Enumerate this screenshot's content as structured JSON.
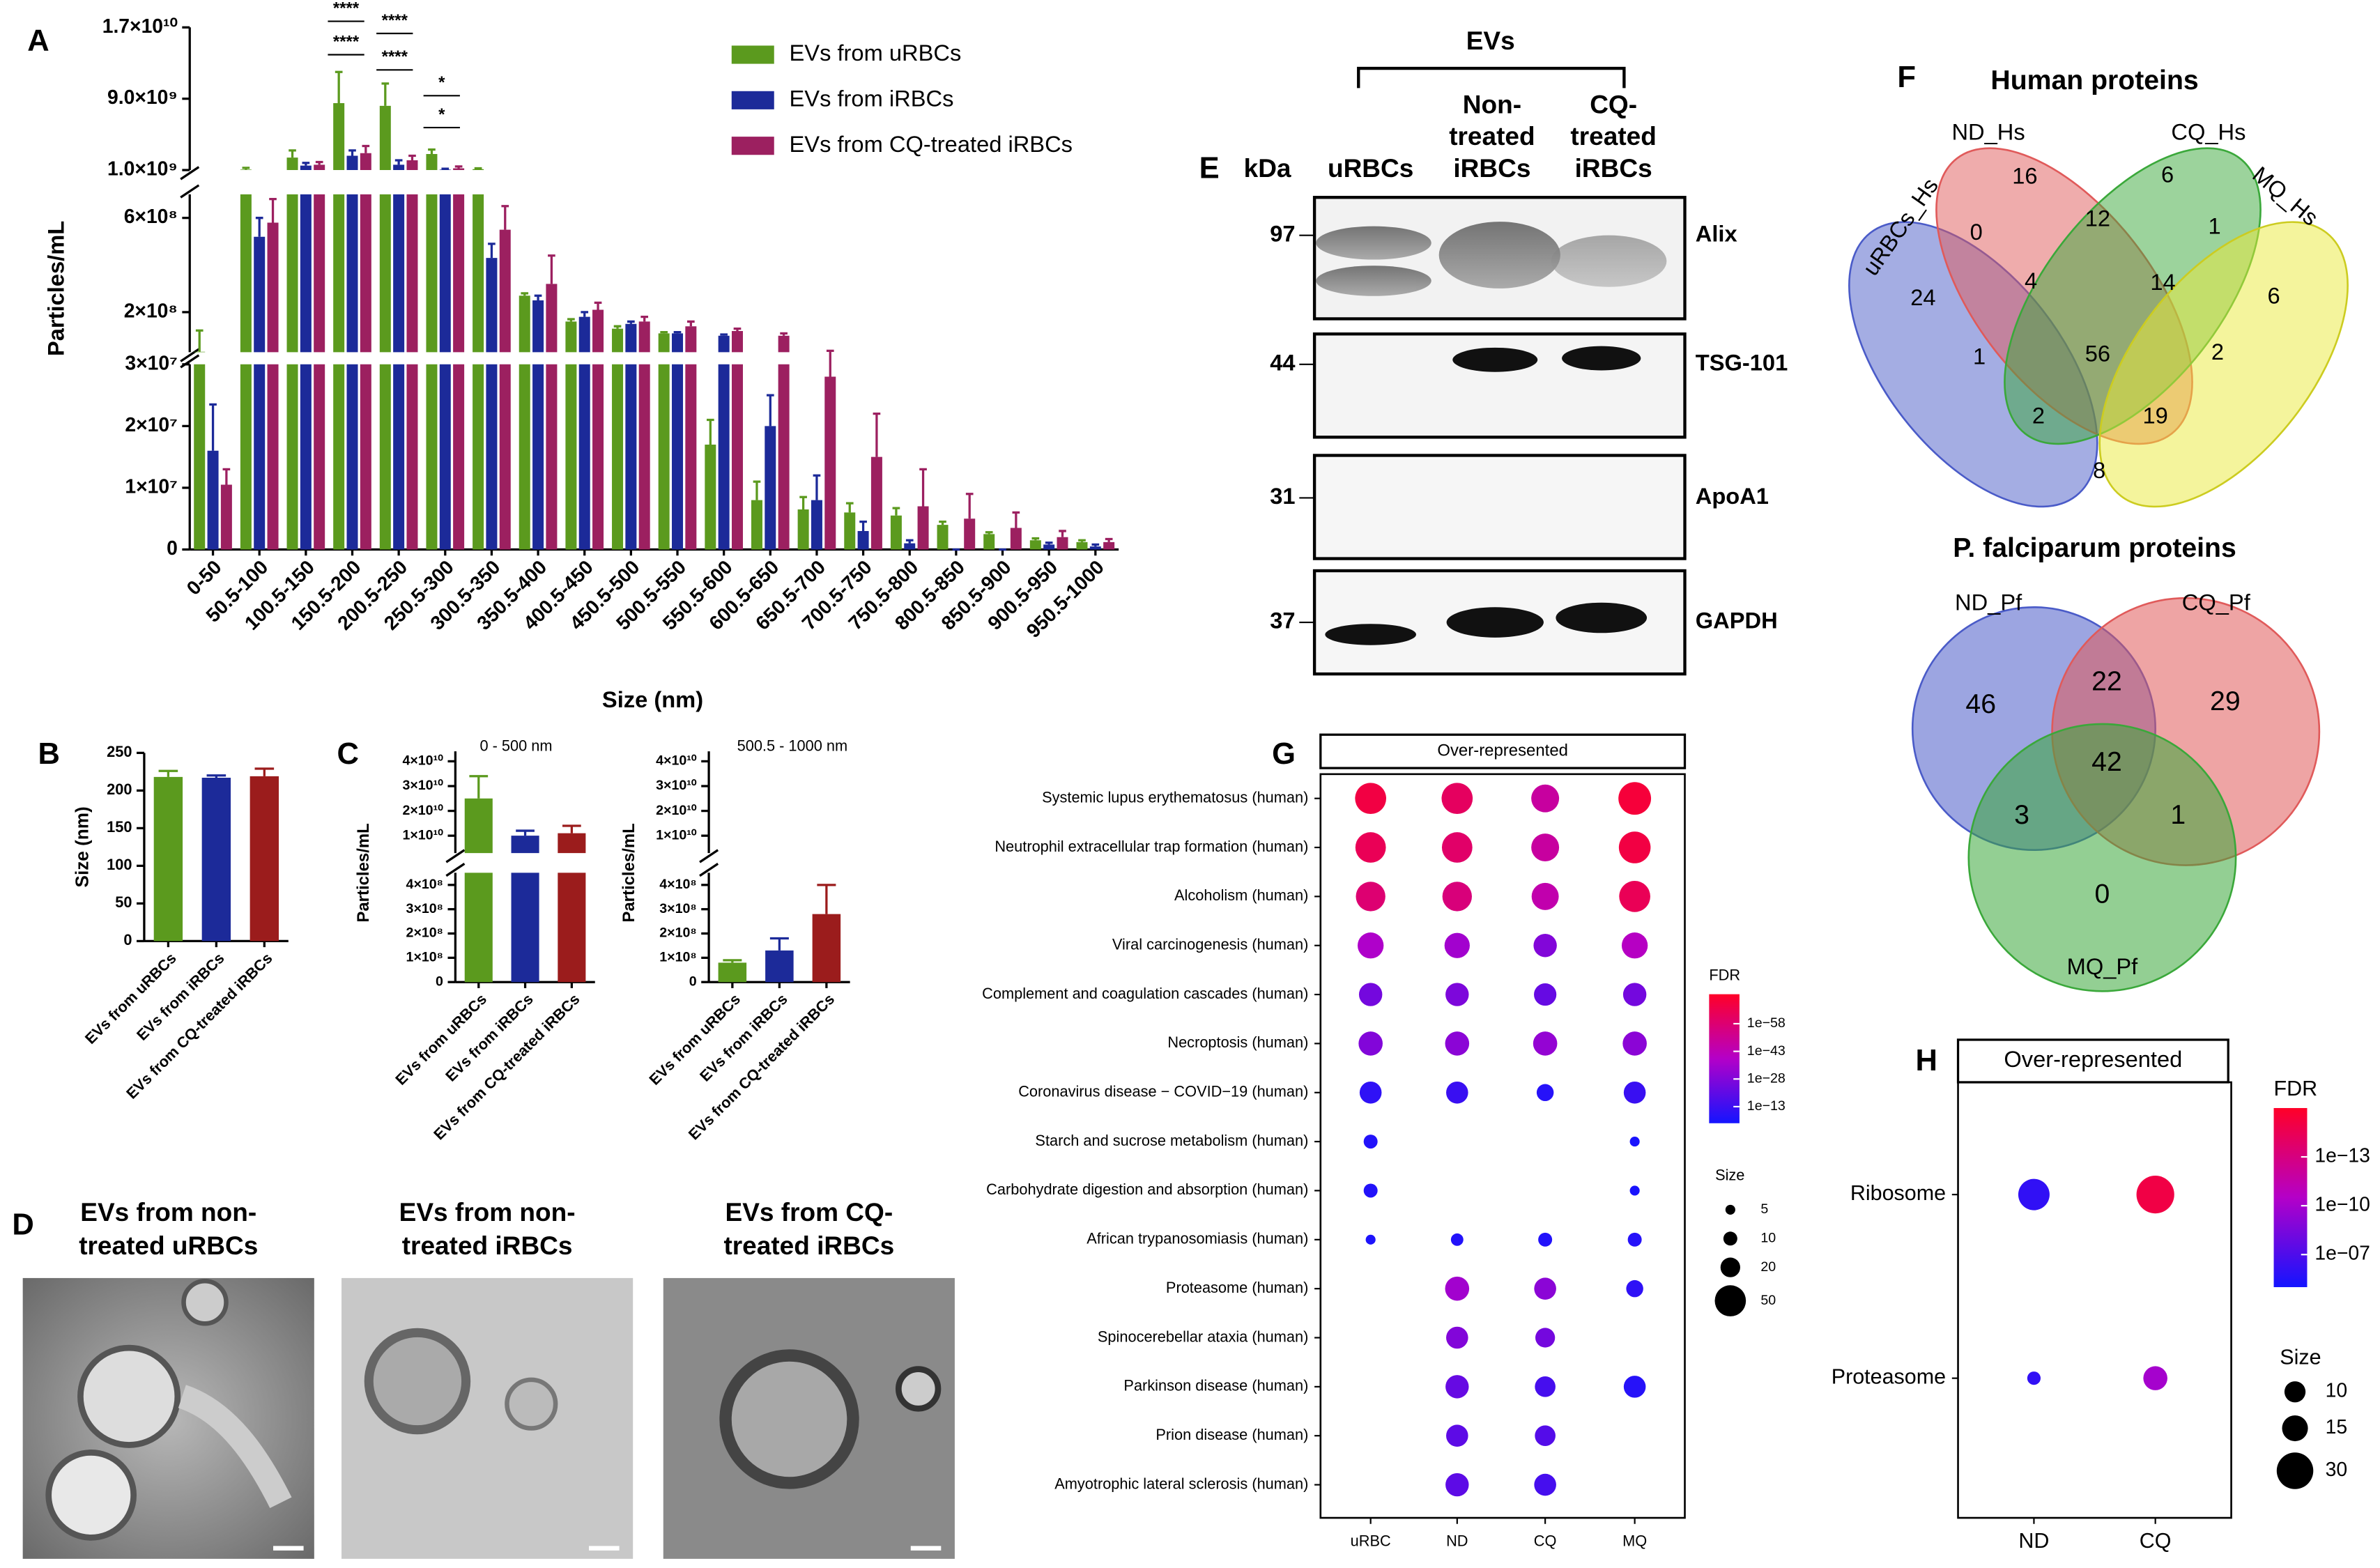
{
  "chart_data": [
    {
      "type": "bar",
      "ylabel": "Particles/mL",
      "xlabel": "Size (nm)",
      "legend": "top-right",
      "categories": [
        "0-50",
        "50.5-100",
        "100.5-150",
        "150.5-200",
        "200.5-250",
        "250.5-300",
        "300.5-350",
        "350.5-400",
        "400.5-450",
        "450.5-500",
        "500.5-550",
        "550.5-600",
        "600.5-650",
        "650.5-700",
        "700.5-750",
        "750.5-800",
        "800.5-850",
        "850.5-900",
        "900.5-950",
        "950.5-1000"
      ],
      "series": [
        {
          "name": "EVs from uRBCs",
          "color": "#5b9a1e",
          "values": [
            32000000.0,
            1050000000.0,
            2400000000.0,
            8500000000.0,
            8200000000.0,
            2800000000.0,
            1100000000.0,
            270000000.0,
            160000000.0,
            130000000.0,
            110000000.0,
            17000000.0,
            8000000.0,
            6500000.0,
            6000000.0,
            5500000.0,
            4000000.0,
            2500000.0,
            1500000.0,
            1200000.0
          ],
          "errors": [
            90000000.0,
            200000000.0,
            800000000.0,
            3500000000.0,
            2500000000.0,
            500000000.0,
            100000000.0,
            10000000.0,
            10000000.0,
            10000000.0,
            5000000.0,
            4000000.0,
            3000000.0,
            2000000.0,
            1500000.0,
            1200000.0,
            500000.0,
            300000.0,
            300000.0,
            300000.0
          ]
        },
        {
          "name": "EVs from iRBCs",
          "color": "#1c2a99",
          "values": [
            16000000.0,
            520000000.0,
            1500000000.0,
            2600000000.0,
            1600000000.0,
            1050000000.0,
            430000000.0,
            250000000.0,
            180000000.0,
            150000000.0,
            110000000.0,
            100000000.0,
            20000000.0,
            8000000.0,
            3000000.0,
            1000000.0,
            0,
            0,
            800000.0,
            500000.0
          ],
          "errors": [
            7500000.0,
            80000000.0,
            300000000.0,
            600000000.0,
            500000000.0,
            100000000.0,
            60000000.0,
            20000000.0,
            20000000.0,
            10000000.0,
            5000000.0,
            5000000.0,
            5000000.0,
            4000000.0,
            1500000.0,
            500000.0,
            0,
            0,
            300000.0,
            300000.0
          ]
        },
        {
          "name": "EVs from CQ-treated iRBCs",
          "color": "#9c2060",
          "values": [
            10500000.0,
            580000000.0,
            1600000000.0,
            2900000000.0,
            2100000000.0,
            1200000000.0,
            550000000.0,
            320000000.0,
            210000000.0,
            160000000.0,
            140000000.0,
            120000000.0,
            100000000.0,
            28000000.0,
            15000000.0,
            7000000.0,
            5000000.0,
            3500000.0,
            2000000.0,
            1200000.0
          ],
          "errors": [
            2500000.0,
            100000000.0,
            300000000.0,
            800000000.0,
            500000000.0,
            200000000.0,
            100000000.0,
            120000000.0,
            30000000.0,
            20000000.0,
            20000000.0,
            10000000.0,
            10000000.0,
            8000000.0,
            7000000.0,
            6000000.0,
            4000000.0,
            2500000.0,
            1000000.0,
            500000.0
          ]
        }
      ],
      "segments": [
        {
          "ylim": [
            0,
            30000000.0
          ],
          "yticks": [
            0,
            {
              "value": 10000000.0,
              "label": "1×10⁷"
            },
            {
              "value": 20000000.0,
              "label": "2×10⁷"
            },
            {
              "value": 30000000.0,
              "label": "3×10⁷"
            }
          ]
        },
        {
          "ylim": [
            30000000.0,
            700000000.0
          ],
          "yticks": [
            {
              "value": 200000000.0,
              "label": "2×10⁸"
            },
            {
              "value": 600000000.0,
              "label": "6×10⁸"
            }
          ]
        },
        {
          "ylim": [
            1000000000.0,
            17000000000.0
          ],
          "yticks": [
            {
              "value": 1000000000.0,
              "label": "1.0×10⁹"
            },
            {
              "value": 9000000000.0,
              "label": "9.0×10⁹"
            },
            {
              "value": 17000000000.0,
              "label": "1.7×10¹⁰"
            }
          ]
        }
      ],
      "annotations": [
        "****",
        "****",
        "****",
        "****",
        "*",
        "*"
      ]
    },
    {
      "type": "bar",
      "ylabel": "Size (nm)",
      "categories": [
        "EVs from uRBCs",
        "EVs from iRBCs",
        "EVs from CQ-treated iRBCs"
      ],
      "values": [
        218,
        217,
        219
      ],
      "errors": [
        8,
        3,
        10
      ],
      "colors": [
        "#5b9a1e",
        "#1c2a99",
        "#9b1c1c"
      ],
      "ylim": [
        0,
        250
      ],
      "yticks": [
        0,
        50,
        100,
        150,
        200,
        250
      ]
    },
    {
      "type": "bar",
      "title": "0 - 500 nm",
      "ylabel": "Particles/mL",
      "categories": [
        "EVs from uRBCs",
        "EVs from iRBCs",
        "EVs from CQ-treated iRBCs"
      ],
      "values": [
        25000000000.0,
        10000000000.0,
        11000000000.0
      ],
      "errors": [
        9000000000.0,
        2000000000.0,
        3000000000.0
      ],
      "colors": [
        "#5b9a1e",
        "#1c2a99",
        "#9b1c1c"
      ],
      "segments": [
        {
          "ylim": [
            0,
            450000000.0
          ],
          "yticks": [
            0,
            {
              "value": 100000000.0,
              "label": "1×10⁸"
            },
            {
              "value": 200000000.0,
              "label": "2×10⁸"
            },
            {
              "value": 300000000.0,
              "label": "3×10⁸"
            },
            {
              "value": 400000000.0,
              "label": "4×10⁸"
            }
          ]
        },
        {
          "ylim": [
            3000000000.0,
            44000000000.0
          ],
          "yticks": [
            {
              "value": 10000000000.0,
              "label": "1×10¹⁰"
            },
            {
              "value": 20000000000.0,
              "label": "2×10¹⁰"
            },
            {
              "value": 30000000000.0,
              "label": "3×10¹⁰"
            },
            {
              "value": 40000000000.0,
              "label": "4×10¹⁰"
            }
          ]
        }
      ]
    },
    {
      "type": "bar",
      "title": "500.5 - 1000 nm",
      "ylabel": "Particles/mL",
      "categories": [
        "EVs from uRBCs",
        "EVs from iRBCs",
        "EVs from CQ-treated iRBCs"
      ],
      "values": [
        80000000.0,
        130000000.0,
        280000000.0
      ],
      "errors": [
        10000000.0,
        50000000.0,
        120000000.0
      ],
      "colors": [
        "#5b9a1e",
        "#1c2a99",
        "#9b1c1c"
      ],
      "segments": [
        {
          "ylim": [
            0,
            450000000.0
          ],
          "yticks": [
            0,
            {
              "value": 100000000.0,
              "label": "1×10⁸"
            },
            {
              "value": 200000000.0,
              "label": "2×10⁸"
            },
            {
              "value": 300000000.0,
              "label": "3×10⁸"
            },
            {
              "value": 400000000.0,
              "label": "4×10⁸"
            }
          ]
        },
        {
          "ylim": [
            3000000000.0,
            44000000000.0
          ],
          "yticks": [
            {
              "value": 10000000000.0,
              "label": "1×10¹⁰"
            },
            {
              "value": 20000000000.0,
              "label": "2×10¹⁰"
            },
            {
              "value": 30000000000.0,
              "label": "3×10¹⁰"
            },
            {
              "value": 40000000000.0,
              "label": "4×10¹⁰"
            }
          ]
        }
      ]
    },
    {
      "type": "dot",
      "header": "Over-represented",
      "legend_fdr": "FDR",
      "legend_size": "Size",
      "rows": [
        "Systemic lupus erythematosus (human)",
        "Neutrophil extracellular trap formation (human)",
        "Alcoholism (human)",
        "Viral carcinogenesis (human)",
        "Complement and coagulation cascades (human)",
        "Necroptosis (human)",
        "Coronavirus disease − COVID−19 (human)",
        "Starch and sucrose metabolism (human)",
        "Carbohydrate digestion and absorption (human)",
        "African trypanosomiasis (human)",
        "Proteasome (human)",
        "Spinocerebellar ataxia (human)",
        "Parkinson disease (human)",
        "Prion disease (human)",
        "Amyotrophic lateral sclerosis (human)"
      ],
      "series": [
        {
          "name": "uRBC",
          "fdr": [
            1e-68,
            1e-64,
            1e-58,
            1e-38,
            1e-25,
            1e-28,
            1e-10,
            1e-07,
            1e-07,
            1e-06,
            null,
            null,
            null,
            null,
            null
          ],
          "size": [
            50,
            48,
            45,
            35,
            28,
            30,
            25,
            10,
            10,
            5,
            null,
            null,
            null,
            null,
            null
          ]
        },
        {
          "name": "ND",
          "fdr": [
            1e-62,
            1e-60,
            1e-56,
            1e-35,
            1e-27,
            1e-30,
            1e-12,
            null,
            null,
            1e-07,
            1e-35,
            1e-28,
            1e-22,
            1e-20,
            1e-20
          ],
          "size": [
            50,
            48,
            45,
            33,
            28,
            30,
            25,
            null,
            null,
            8,
            30,
            25,
            28,
            25,
            28
          ]
        },
        {
          "name": "CQ",
          "fdr": [
            1e-48,
            1e-48,
            1e-45,
            1e-28,
            1e-22,
            1e-32,
            1e-08,
            null,
            null,
            1e-07,
            1e-30,
            1e-25,
            1e-15,
            1e-18,
            1e-15
          ],
          "size": [
            40,
            40,
            38,
            28,
            26,
            30,
            15,
            null,
            null,
            10,
            25,
            20,
            22,
            22,
            25
          ]
        },
        {
          "name": "MQ",
          "fdr": [
            1e-70,
            1e-68,
            1e-64,
            1e-40,
            1e-25,
            1e-30,
            1e-12,
            1e-05,
            1e-05,
            1e-08,
            1e-10,
            null,
            1e-08,
            null,
            null
          ],
          "size": [
            55,
            52,
            50,
            35,
            28,
            30,
            25,
            5,
            5,
            10,
            15,
            null,
            25,
            null,
            null
          ]
        }
      ],
      "fdr_lim": [
        0.0001,
        1e-74
      ],
      "fdr_ticks": [
        {
          "value": 1e-58,
          "label": "1e−58"
        },
        {
          "value": 1e-43,
          "label": "1e−43"
        },
        {
          "value": 1e-28,
          "label": "1e−28"
        },
        {
          "value": 1e-13,
          "label": "1e−13"
        }
      ],
      "size_ticks": [
        5,
        10,
        20,
        50
      ]
    },
    {
      "type": "dot",
      "header": "Over-represented",
      "legend_fdr": "FDR",
      "legend_size": "Size",
      "rows": [
        "Ribosome",
        "Proteasome"
      ],
      "series": [
        {
          "name": "ND",
          "fdr": [
            1e-06,
            1e-06
          ],
          "size": [
            22,
            4
          ]
        },
        {
          "name": "CQ",
          "fdr": [
            1e-15,
            1e-10
          ],
          "size": [
            32,
            13
          ]
        }
      ],
      "fdr_lim": [
        1e-05,
        1e-16
      ],
      "fdr_ticks": [
        {
          "value": 1e-13,
          "label": "1e−13"
        },
        {
          "value": 1e-10,
          "label": "1e−10"
        },
        {
          "value": 1e-07,
          "label": "1e−07"
        }
      ],
      "size_ticks": [
        10,
        15,
        30
      ]
    }
  ],
  "panel_labels": [
    "A",
    "B",
    "C",
    "D",
    "E",
    "F",
    "G",
    "H"
  ],
  "micrographs": {
    "captions": [
      [
        "EVs from non-",
        "treated uRBCs"
      ],
      [
        "EVs from non-",
        "treated iRBCs"
      ],
      [
        "EVs from CQ-",
        "treated iRBCs"
      ]
    ]
  },
  "blot": {
    "group": "EVs",
    "unit": "kDa",
    "lanes": [
      [
        "uRBCs"
      ],
      [
        "Non-",
        "treated",
        "iRBCs"
      ],
      [
        "CQ-",
        "treated",
        "iRBCs"
      ]
    ],
    "markers": [
      97,
      44,
      31,
      37
    ],
    "proteins": [
      "Alix",
      "TSG-101",
      "ApoA1",
      "GAPDH"
    ]
  },
  "venn": [
    {
      "title": "Human proteins",
      "sets": [
        "ND_Hs",
        "CQ_Hs",
        "MQ_Hs",
        "uRBCs_Hs"
      ],
      "counts": [
        16,
        6,
        0,
        12,
        1,
        24,
        4,
        14,
        6,
        1,
        56,
        2,
        2,
        19,
        8
      ]
    },
    {
      "title": "P. falciparum proteins",
      "sets": [
        "ND_Pf",
        "CQ_Pf",
        "MQ_Pf"
      ],
      "counts": [
        46,
        22,
        29,
        42,
        3,
        1,
        0
      ]
    }
  ]
}
